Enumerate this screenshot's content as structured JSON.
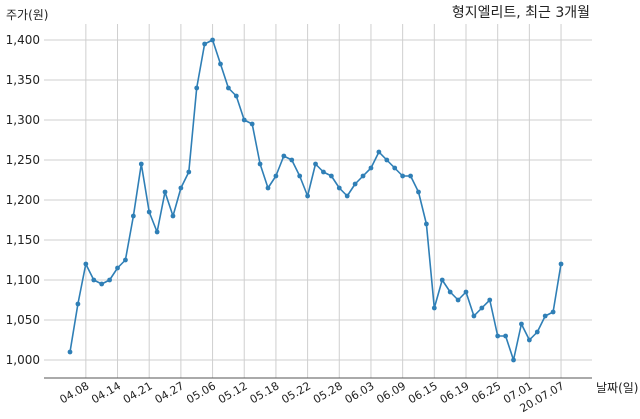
{
  "chart_data": {
    "type": "line",
    "title": "형지엘리트, 최근 3개월",
    "xlabel": "날짜(일)",
    "ylabel": "주가(원)",
    "ylim": [
      975,
      1420
    ],
    "yticks": [
      "1,000",
      "1,050",
      "1,100",
      "1,150",
      "1,200",
      "1,250",
      "1,300",
      "1,350",
      "1,400"
    ],
    "ytick_values": [
      1000,
      1050,
      1100,
      1150,
      1200,
      1250,
      1300,
      1350,
      1400
    ],
    "xticks": [
      "04.08",
      "04.14",
      "04.21",
      "04.27",
      "05.06",
      "05.12",
      "05.18",
      "05.22",
      "05.28",
      "06.03",
      "06.09",
      "06.15",
      "06.19",
      "06.25",
      "07.01",
      "20.07.07"
    ],
    "xtick_index": [
      2,
      6,
      10,
      14,
      18,
      22,
      26,
      30,
      34,
      38,
      42,
      46,
      50,
      54,
      58,
      62
    ],
    "grid": true,
    "line_color": "#2f7fb6",
    "series": [
      {
        "values": [
          1010,
          1070,
          1120,
          1100,
          1095,
          1100,
          1115,
          1125,
          1180,
          1245,
          1185,
          1160,
          1210,
          1180,
          1215,
          1235,
          1340,
          1395,
          1400,
          1370,
          1340,
          1330,
          1300,
          1295,
          1245,
          1215,
          1230,
          1255,
          1250,
          1230,
          1205,
          1245,
          1235,
          1230,
          1215,
          1205,
          1220,
          1230,
          1240,
          1260,
          1250,
          1240,
          1230,
          1230,
          1210,
          1170,
          1065,
          1100,
          1085,
          1075,
          1085,
          1055,
          1065,
          1075,
          1030,
          1030,
          1000,
          1045,
          1025,
          1035,
          1055,
          1060,
          1120
        ]
      }
    ]
  }
}
